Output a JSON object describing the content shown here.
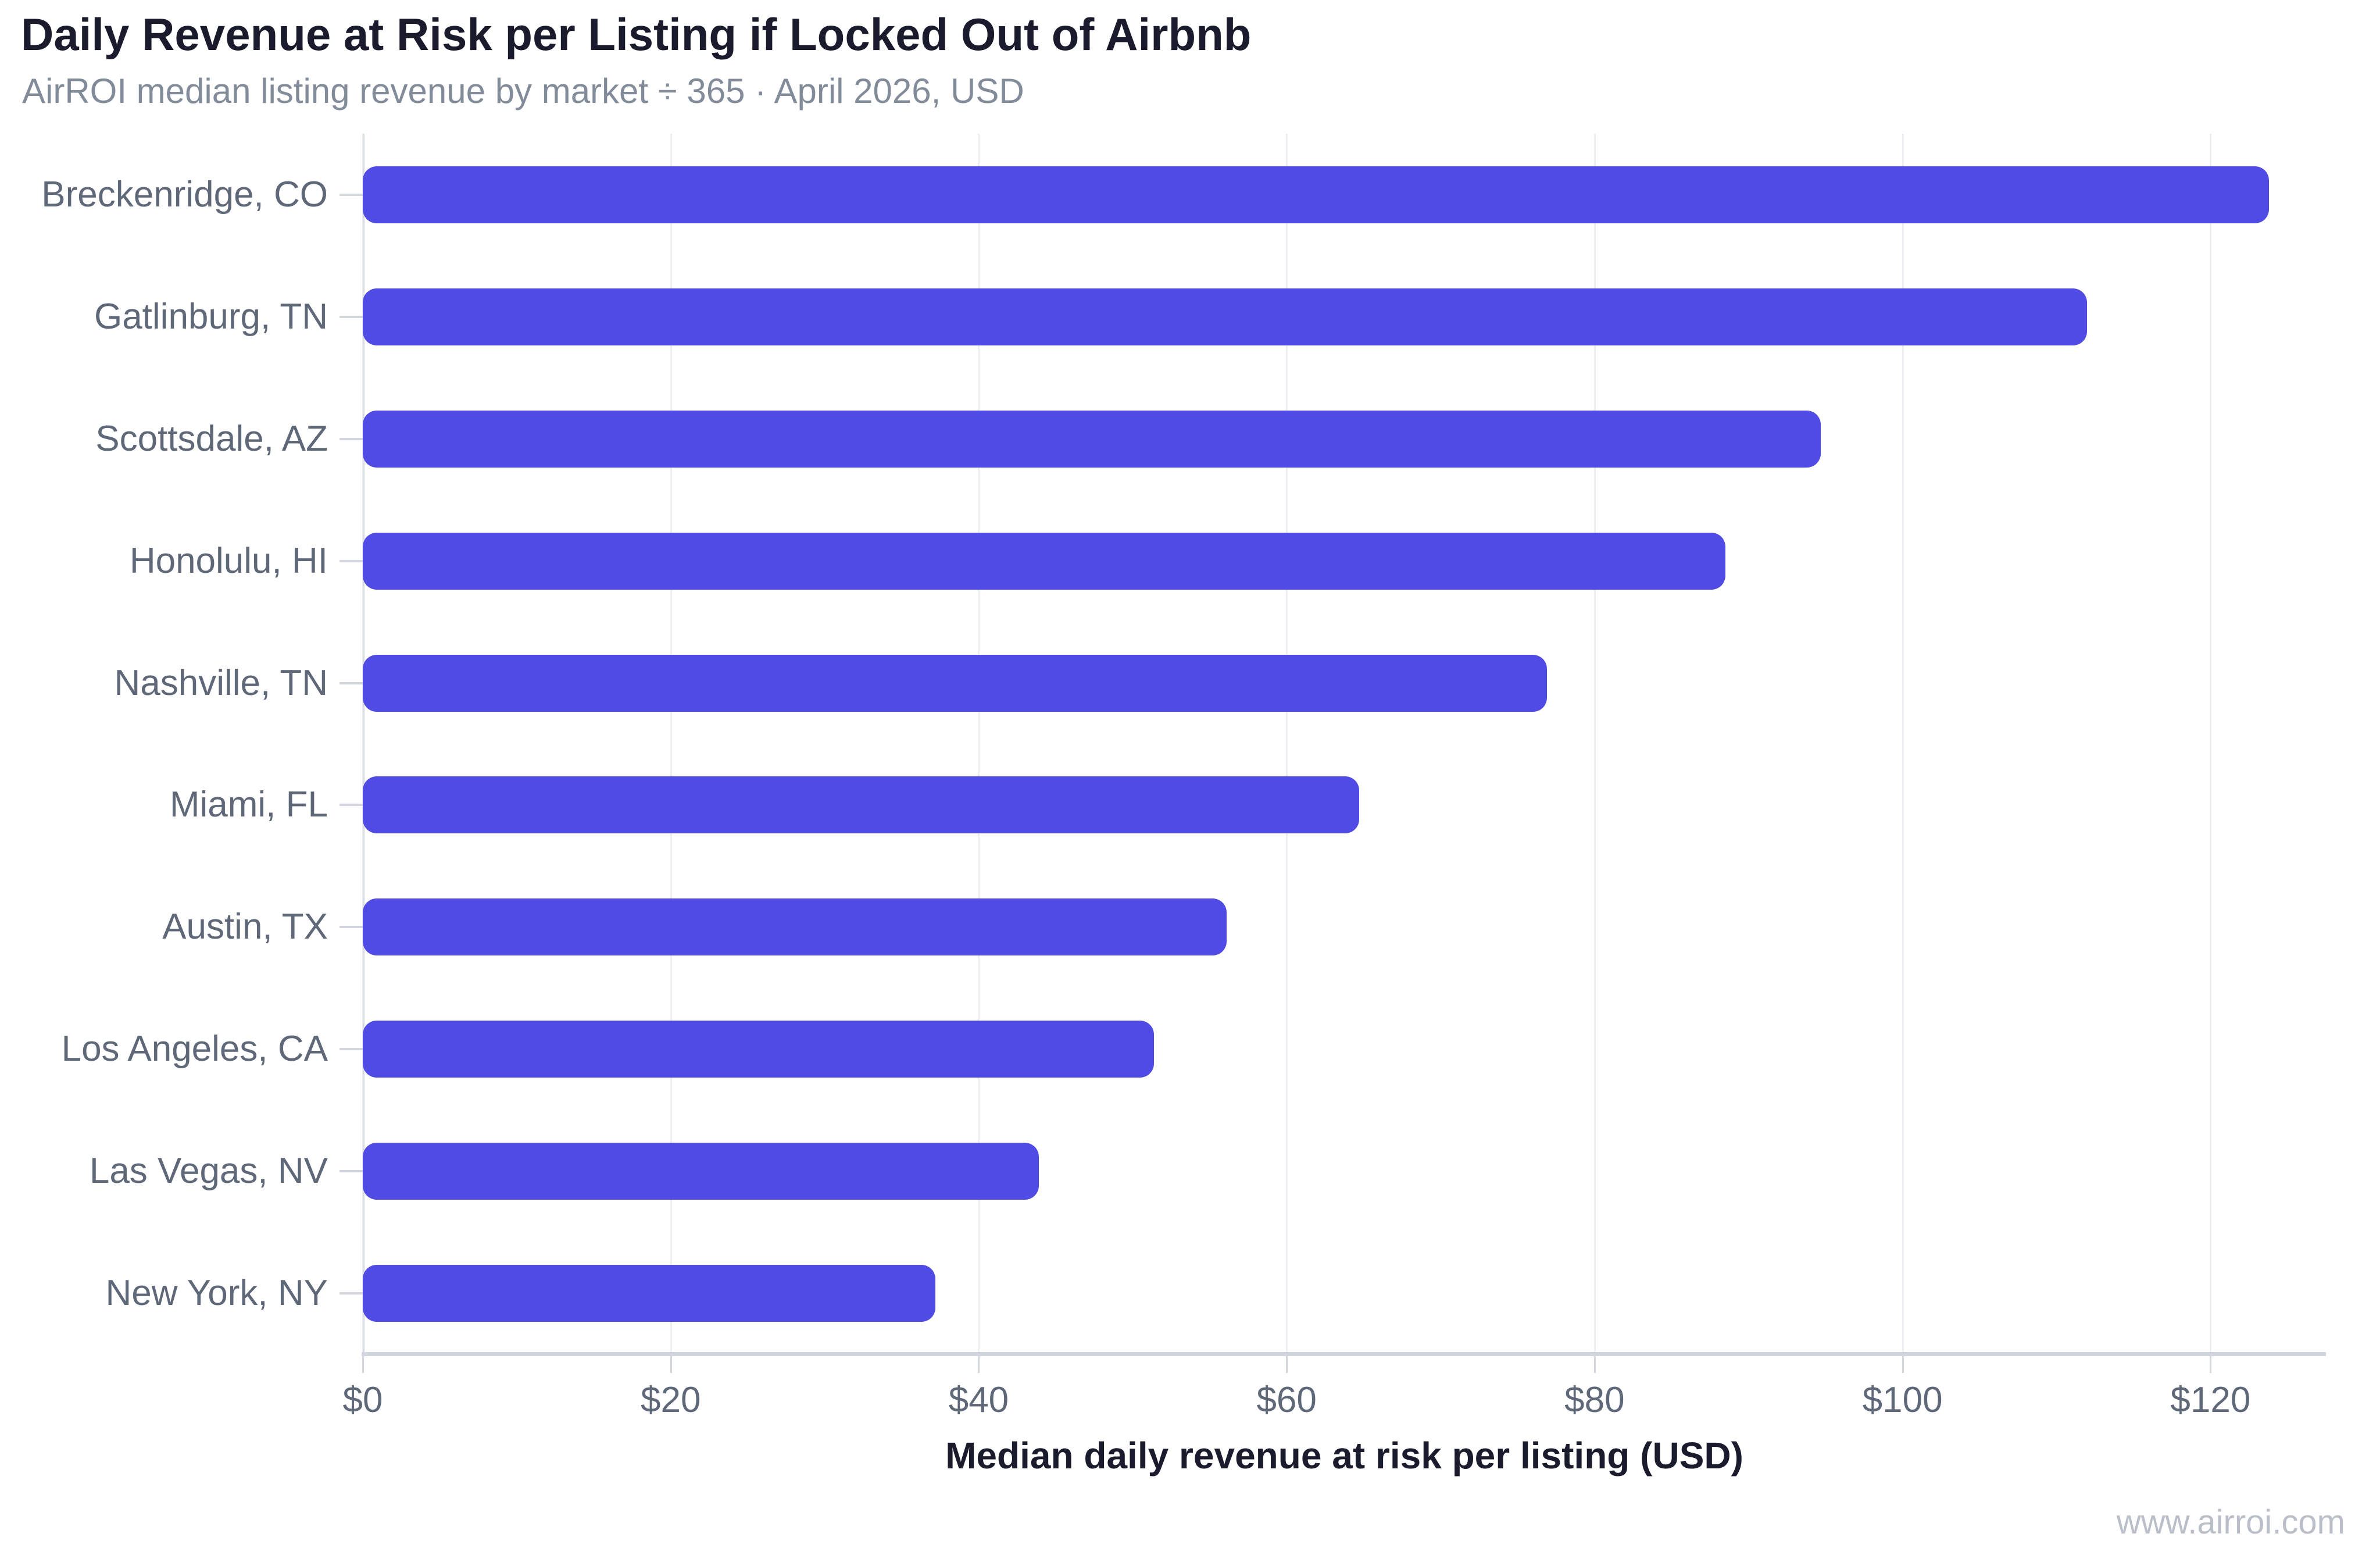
{
  "header": {
    "title": "Daily Revenue at Risk per Listing if Locked Out of Airbnb",
    "subtitle": "AirROI median listing revenue by market ÷ 365 · April 2026, USD"
  },
  "chart_data": {
    "type": "bar",
    "orientation": "horizontal",
    "title": "Daily Revenue at Risk per Listing if Locked Out of Airbnb",
    "subtitle": "AirROI median listing revenue by market ÷ 365 · April 2026, USD",
    "categories": [
      "Breckenridge, CO",
      "Gatlinburg, TN",
      "Scottsdale, AZ",
      "Honolulu, HI",
      "Nashville, TN",
      "Miami, FL",
      "Austin, TX",
      "Los Angeles, CA",
      "Las Vegas, NV",
      "New York, NY"
    ],
    "values": [
      123.8,
      112.0,
      94.7,
      88.5,
      76.9,
      64.7,
      56.1,
      51.4,
      43.9,
      37.2
    ],
    "xlabel": "Median daily revenue at risk per listing (USD)",
    "ylabel": "",
    "xlim": [
      0,
      127.5
    ],
    "xticks": {
      "values": [
        0,
        20,
        40,
        60,
        80,
        100,
        120
      ],
      "labels": [
        "$0",
        "$20",
        "$40",
        "$60",
        "$80",
        "$100",
        "$120"
      ]
    },
    "grid": "vertical",
    "legend": "none",
    "bar_color": "#4F4BE4"
  },
  "colors": {
    "bar": "#4F4BE4",
    "title_text": "#1A1C2E",
    "subtitle_text": "#828B99",
    "tick_text": "#5F6878",
    "gridline": "#EDEEF2",
    "axis_line": "#D3D6DE",
    "background": "#FFFFFF",
    "watermark_text": "#B9BEC8"
  },
  "footer": {
    "watermark": "www.airroi.com"
  }
}
